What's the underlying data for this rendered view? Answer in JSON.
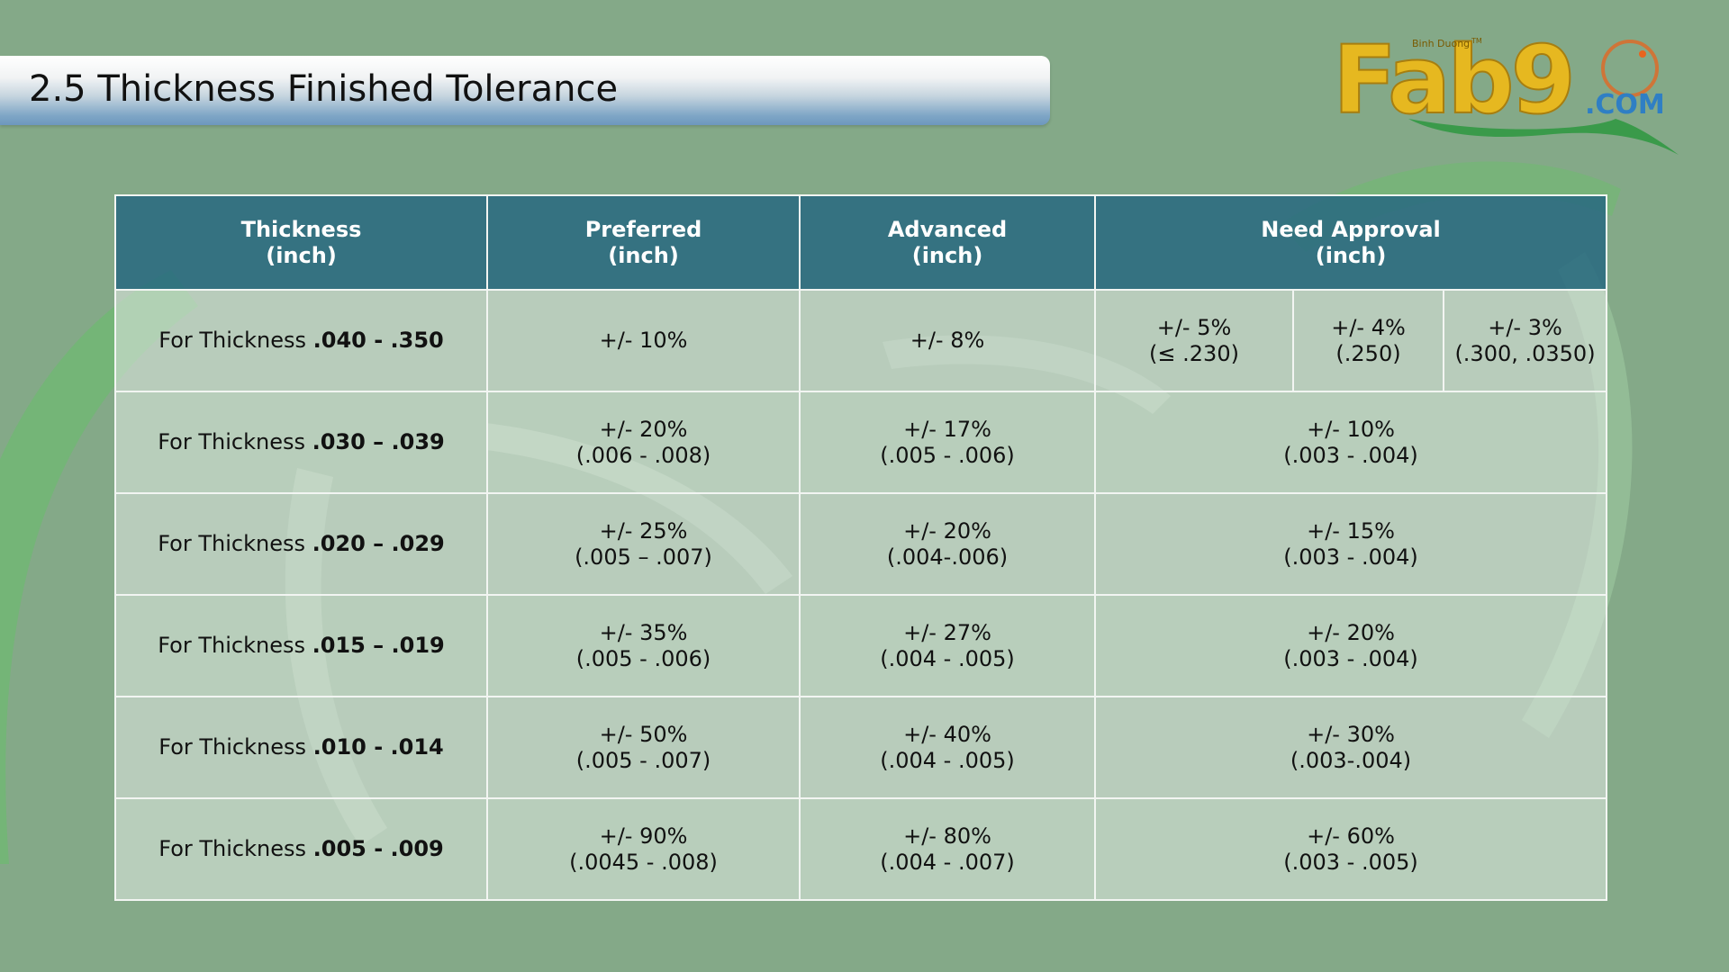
{
  "slide": {
    "title": "2.5 Thickness Finished Tolerance"
  },
  "logo": {
    "tagline": "Binh Duong",
    "trademark": "TM",
    "name": "Fab9",
    "suffix": ".COM",
    "colors": {
      "gold": "#e6b820",
      "orange": "#e8641e",
      "blue": "#2f7fc4",
      "swoosh": "#3a9a4a"
    }
  },
  "table": {
    "headers": [
      {
        "line1": "Thickness",
        "line2": "(inch)"
      },
      {
        "line1": "Preferred",
        "line2": "(inch)"
      },
      {
        "line1": "Advanced",
        "line2": "(inch)"
      },
      {
        "line1": "Need Approval",
        "line2": "(inch)"
      }
    ],
    "rows": [
      {
        "prefix": "For Thickness ",
        "range": ".040 - .350",
        "preferred": {
          "pct": "+/- 10%",
          "sub": ""
        },
        "advanced": {
          "pct": "+/- 8%",
          "sub": ""
        },
        "approval_split": [
          {
            "pct": "+/- 5%",
            "sub": "(≤ .230)"
          },
          {
            "pct": "+/- 4%",
            "sub": "(.250)"
          },
          {
            "pct": "+/- 3%",
            "sub": "(.300, .0350)"
          }
        ]
      },
      {
        "prefix": "For Thickness ",
        "range": ".030 – .039",
        "preferred": {
          "pct": "+/- 20%",
          "sub": "(.006  - .008)"
        },
        "advanced": {
          "pct": "+/- 17%",
          "sub": "(.005 - .006)"
        },
        "approval": {
          "pct": "+/- 10%",
          "sub": "(.003 - .004)"
        }
      },
      {
        "prefix": "For Thickness ",
        "range": ".020 – .029",
        "preferred": {
          "pct": "+/- 25%",
          "sub": "(.005 – .007)"
        },
        "advanced": {
          "pct": "+/- 20%",
          "sub": "(.004-.006)"
        },
        "approval": {
          "pct": "+/- 15%",
          "sub": "(.003 - .004)"
        }
      },
      {
        "prefix": "For Thickness ",
        "range": ".015 – .019",
        "preferred": {
          "pct": "+/- 35%",
          "sub": "(.005 - .006)"
        },
        "advanced": {
          "pct": "+/- 27%",
          "sub": "(.004 - .005)"
        },
        "approval": {
          "pct": "+/- 20%",
          "sub": "(.003 - .004)"
        }
      },
      {
        "prefix": "For Thickness ",
        "range": ".010 - .014",
        "preferred": {
          "pct": "+/- 50%",
          "sub": "(.005 - .007)"
        },
        "advanced": {
          "pct": "+/- 40%",
          "sub": "(.004 - .005)"
        },
        "approval": {
          "pct": "+/- 30%",
          "sub": "(.003-.004)"
        }
      },
      {
        "prefix": "For Thickness ",
        "range": ".005 - .009",
        "preferred": {
          "pct": "+/- 90%",
          "sub": "(.0045 - .008)"
        },
        "advanced": {
          "pct": "+/- 80%",
          "sub": "(.004 - .007)"
        },
        "approval": {
          "pct": "+/- 60%",
          "sub": "(.003 - .005)"
        }
      }
    ]
  },
  "theme": {
    "background": "#84a988",
    "header_fill": "#3a7585",
    "grid_line": "#f2f5f2"
  }
}
